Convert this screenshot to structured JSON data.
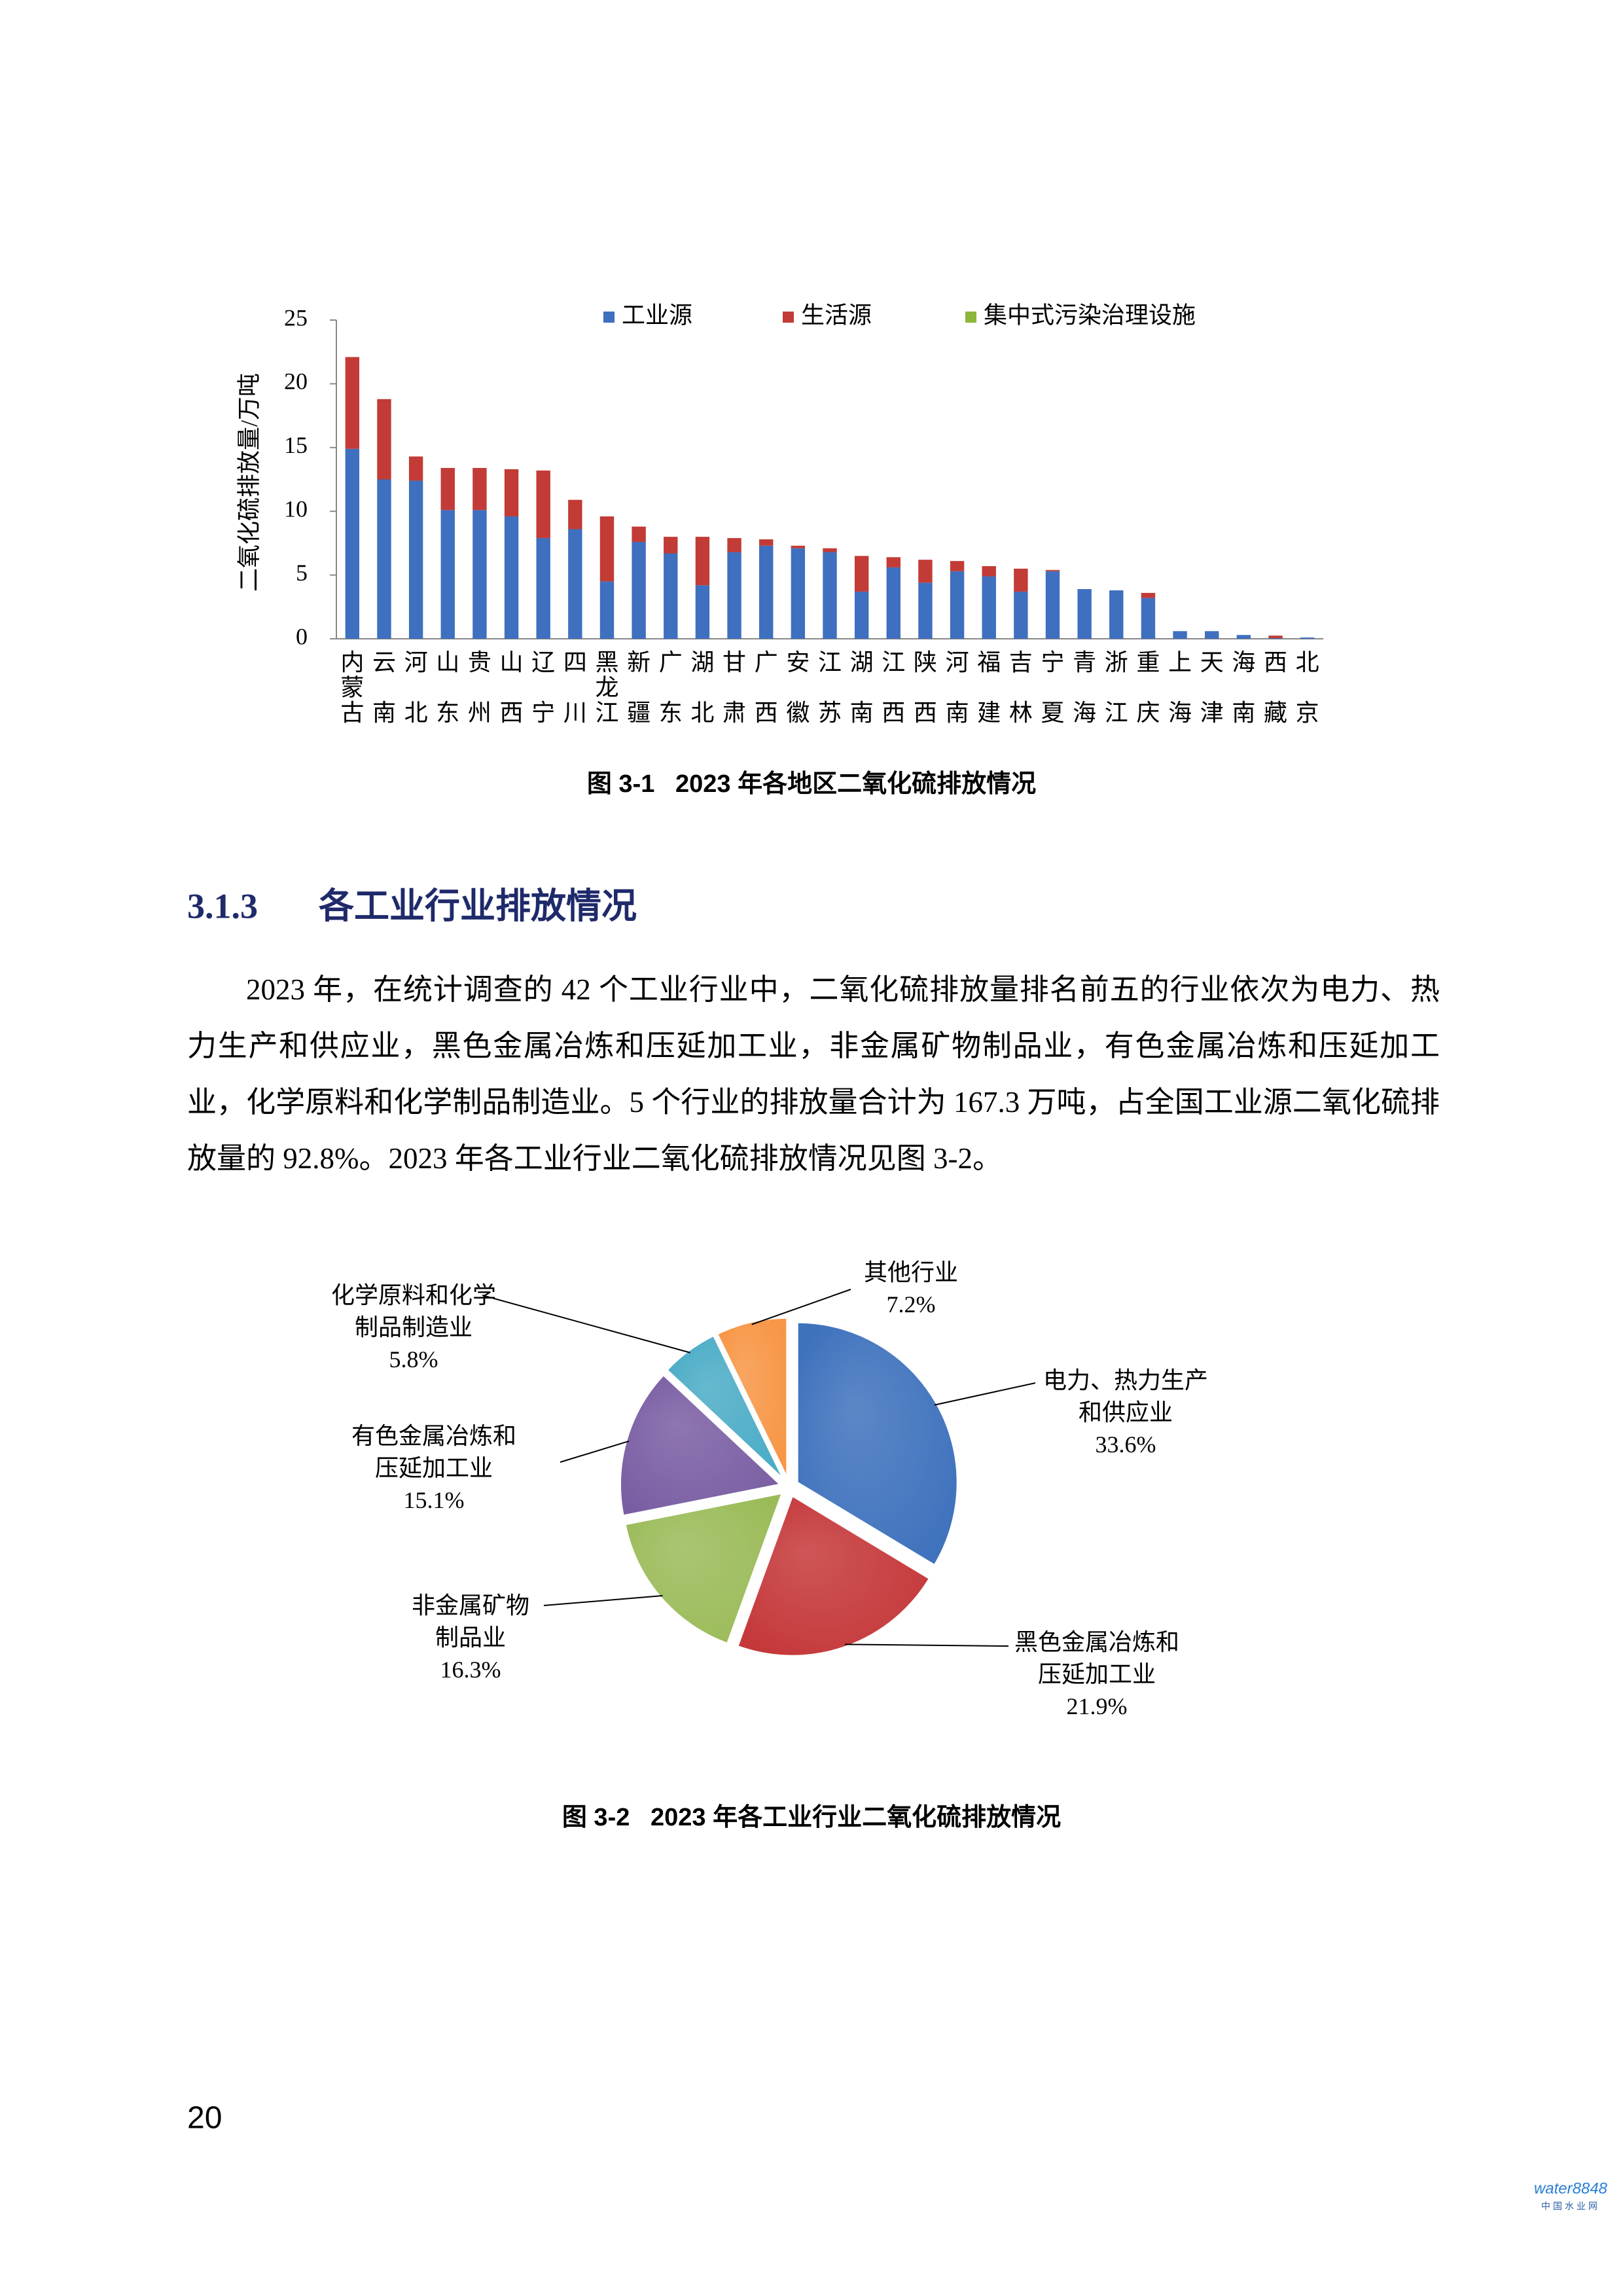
{
  "chart_data": [
    {
      "type": "bar",
      "stacked": true,
      "title": "图 3-1   2023 年各地区二氧化硫排放情况",
      "y_label": "二氧化硫排放量/万吨",
      "categories": [
        "内蒙古",
        "云南",
        "河北",
        "山东",
        "贵州",
        "山西",
        "辽宁",
        "四川",
        "黑龙江",
        "新疆",
        "广东",
        "湖北",
        "甘肃",
        "广西",
        "安徽",
        "江苏",
        "湖南",
        "江西",
        "陕西",
        "河南",
        "福建",
        "吉林",
        "宁夏",
        "青海",
        "浙江",
        "重庆",
        "上海",
        "天津",
        "海南",
        "西藏",
        "北京"
      ],
      "series": [
        {
          "name": "工业源",
          "color": "#3f6fbf",
          "values": [
            14.9,
            12.5,
            12.4,
            10.1,
            10.1,
            9.6,
            7.9,
            8.6,
            4.5,
            7.6,
            6.7,
            4.2,
            6.8,
            7.3,
            7.1,
            6.8,
            3.7,
            5.6,
            4.4,
            5.3,
            4.9,
            3.7,
            5.3,
            3.9,
            3.8,
            3.2,
            0.6,
            0.6,
            0.3,
            0.05,
            0.1
          ]
        },
        {
          "name": "生活源",
          "color": "#c23b36",
          "values": [
            7.2,
            6.3,
            1.9,
            3.3,
            3.3,
            3.7,
            5.3,
            2.3,
            5.1,
            1.2,
            1.3,
            3.8,
            1.1,
            0.5,
            0.2,
            0.3,
            2.8,
            0.8,
            1.8,
            0.8,
            0.8,
            1.8,
            0.1,
            0,
            0,
            0.4,
            0,
            0,
            0,
            0.2,
            0
          ]
        },
        {
          "name": "集中式污染治理设施",
          "color": "#8db63c",
          "values": [
            0,
            0,
            0,
            0,
            0,
            0,
            0,
            0,
            0,
            0,
            0,
            0,
            0,
            0,
            0,
            0,
            0,
            0,
            0,
            0,
            0,
            0,
            0,
            0,
            0,
            0,
            0,
            0,
            0,
            0,
            0
          ]
        }
      ],
      "ylim": [
        0,
        25
      ],
      "yticks": [
        0,
        5,
        10,
        15,
        20,
        25
      ],
      "grid": false,
      "legend": "top"
    },
    {
      "type": "pie",
      "title": "图 3-2   2023 年各工业行业二氧化硫排放情况",
      "categories": [
        "电力、热力生产和供应业",
        "黑色金属冶炼和压延加工业",
        "非金属矿物制品业",
        "有色金属冶炼和压延加工业",
        "化学原料和化学制品制造业",
        "其他行业"
      ],
      "values": [
        33.6,
        21.9,
        16.3,
        15.1,
        5.8,
        7.2
      ],
      "value_labels": [
        "33.6%",
        "21.9%",
        "16.3%",
        "15.1%",
        "5.8%",
        "7.2%"
      ],
      "colors": [
        "#3f72bd",
        "#c5383a",
        "#9bbb59",
        "#7a5ea3",
        "#4bacc6",
        "#f79646"
      ]
    }
  ],
  "section": {
    "number": "3.1.3",
    "title": "各工业行业排放情况"
  },
  "paragraph": "2023 年，在统计调查的 42 个工业行业中，二氧化硫排放量排名前五的行业依次为电力、热力生产和供应业，黑色金属冶炼和压延加工业，非金属矿物制品业，有色金属冶炼和压延加工业，化学原料和化学制品制造业。5 个行业的排放量合计为 167.3 万吨，占全国工业源二氧化硫排放量的 92.8%。2023 年各工业行业二氧化硫排放情况见图 3-2。",
  "page_number": "20",
  "watermark": {
    "brand": "water8848",
    "name": "中国水业网"
  }
}
